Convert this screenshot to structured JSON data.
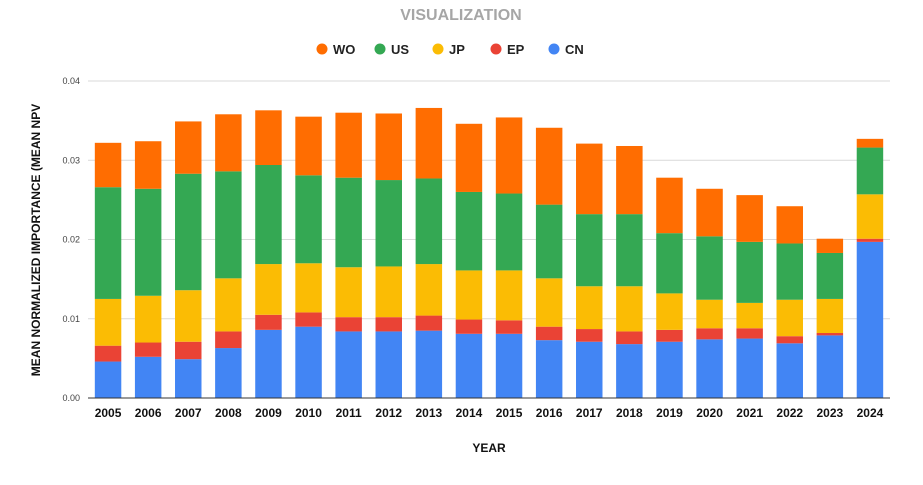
{
  "chart_data": {
    "type": "bar",
    "stacked": true,
    "title": "VISUALIZATION",
    "xlabel": "YEAR",
    "ylabel": "MEAN NORMALIZED IMPORTANCE (MEAN NPV",
    "ylim": [
      0,
      0.04
    ],
    "yticks": [
      "0.00",
      "0.01",
      "0.02",
      "0.03",
      "0.04"
    ],
    "grid": true,
    "legend_position": "top",
    "legend_order": [
      "WO",
      "US",
      "JP",
      "EP",
      "CN"
    ],
    "categories": [
      "2005",
      "2006",
      "2007",
      "2008",
      "2009",
      "2010",
      "2011",
      "2012",
      "2013",
      "2014",
      "2015",
      "2016",
      "2017",
      "2018",
      "2019",
      "2020",
      "2021",
      "2022",
      "2023",
      "2024"
    ],
    "series": [
      {
        "name": "CN",
        "color": "#4285f4",
        "values": [
          0.0046,
          0.0052,
          0.0049,
          0.0063,
          0.0086,
          0.009,
          0.0084,
          0.0084,
          0.0085,
          0.0081,
          0.0081,
          0.0073,
          0.0071,
          0.0068,
          0.0071,
          0.0074,
          0.0075,
          0.0069,
          0.0079,
          0.0197
        ]
      },
      {
        "name": "EP",
        "color": "#ea4335",
        "values": [
          0.002,
          0.0018,
          0.0022,
          0.0021,
          0.0019,
          0.0018,
          0.0018,
          0.0018,
          0.0019,
          0.0018,
          0.0017,
          0.0017,
          0.0016,
          0.0016,
          0.0015,
          0.0014,
          0.0013,
          0.0009,
          0.0003,
          0.0004
        ]
      },
      {
        "name": "JP",
        "color": "#fbbc04",
        "values": [
          0.0059,
          0.0059,
          0.0065,
          0.0067,
          0.0064,
          0.0062,
          0.0063,
          0.0064,
          0.0065,
          0.0062,
          0.0063,
          0.0061,
          0.0054,
          0.0057,
          0.0046,
          0.0036,
          0.0032,
          0.0046,
          0.0043,
          0.0056
        ]
      },
      {
        "name": "US",
        "color": "#34a853",
        "values": [
          0.0141,
          0.0135,
          0.0147,
          0.0135,
          0.0125,
          0.0111,
          0.0113,
          0.0109,
          0.0108,
          0.0099,
          0.0097,
          0.0093,
          0.0091,
          0.0091,
          0.0076,
          0.008,
          0.0077,
          0.0071,
          0.0058,
          0.0059
        ]
      },
      {
        "name": "WO",
        "color": "#ff6d01",
        "values": [
          0.0056,
          0.006,
          0.0066,
          0.0072,
          0.0069,
          0.0074,
          0.0082,
          0.0084,
          0.0089,
          0.0086,
          0.0096,
          0.0097,
          0.0089,
          0.0086,
          0.007,
          0.006,
          0.0059,
          0.0047,
          0.0018,
          0.0011
        ]
      }
    ]
  }
}
